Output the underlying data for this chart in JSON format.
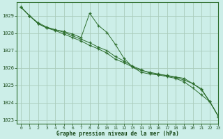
{
  "title": "Graphe pression niveau de la mer (hPa)",
  "background_color": "#cceee8",
  "grid_color": "#aaccbb",
  "line_color": "#2d6e2d",
  "marker_color": "#2d6e2d",
  "ylim": [
    1022.8,
    1029.8
  ],
  "xlim": [
    -0.5,
    23
  ],
  "yticks": [
    1023,
    1024,
    1025,
    1026,
    1027,
    1028,
    1029
  ],
  "xticks": [
    0,
    1,
    2,
    3,
    4,
    5,
    6,
    7,
    8,
    9,
    10,
    11,
    12,
    13,
    14,
    15,
    16,
    17,
    18,
    19,
    20,
    21,
    22,
    23
  ],
  "series": [
    {
      "x": [
        0,
        1,
        2,
        3,
        4,
        5,
        6,
        7,
        8,
        9,
        10,
        11,
        12,
        13,
        14,
        15,
        16,
        17,
        18,
        19,
        20,
        21,
        22,
        23
      ],
      "y": [
        1029.5,
        1029.0,
        1028.55,
        1028.3,
        1028.2,
        1028.1,
        1027.95,
        1027.75,
        1029.15,
        1028.45,
        1028.05,
        1027.35,
        1026.55,
        1026.05,
        1025.75,
        1025.65,
        1025.6,
        1025.5,
        1025.4,
        1025.2,
        1024.85,
        1024.45,
        1024.05,
        1023.2
      ]
    },
    {
      "x": [
        0,
        1,
        2,
        3,
        4,
        5,
        6,
        7,
        8,
        9,
        10,
        11,
        12,
        13,
        14,
        15,
        16,
        17,
        18,
        19,
        20,
        21,
        22,
        23
      ],
      "y": [
        1029.5,
        1029.0,
        1028.55,
        1028.3,
        1028.15,
        1027.95,
        1027.75,
        1027.55,
        1027.3,
        1027.1,
        1026.85,
        1026.5,
        1026.3,
        1026.05,
        1025.85,
        1025.75,
        1025.65,
        1025.55,
        1025.45,
        1025.3,
        1025.1,
        1024.8,
        1024.05,
        1023.2
      ]
    },
    {
      "x": [
        0,
        1,
        2,
        3,
        4,
        5,
        6,
        7,
        8,
        9,
        10,
        11,
        12,
        13,
        14,
        15,
        16,
        17,
        18,
        19,
        20,
        21,
        22,
        23
      ],
      "y": [
        1029.5,
        1029.0,
        1028.6,
        1028.35,
        1028.2,
        1028.05,
        1027.85,
        1027.65,
        1027.45,
        1027.2,
        1027.0,
        1026.65,
        1026.4,
        1026.1,
        1025.9,
        1025.7,
        1025.62,
        1025.57,
        1025.48,
        1025.4,
        1025.1,
        1024.75,
        1024.05,
        1023.2
      ]
    }
  ]
}
